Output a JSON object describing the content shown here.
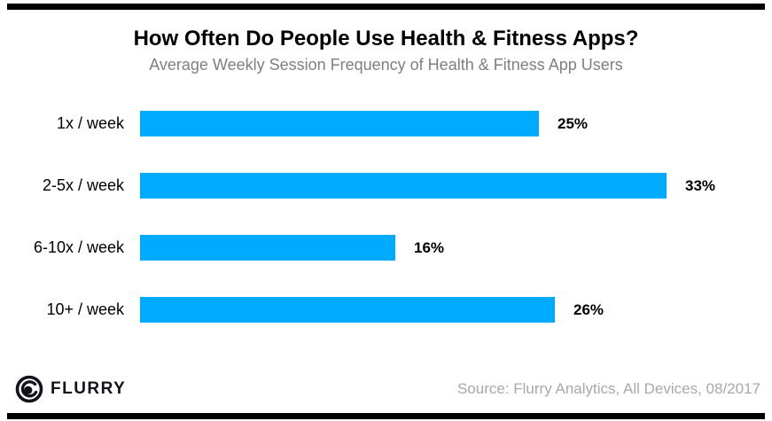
{
  "header": {
    "title": "How Often Do People Use Health & Fitness Apps?",
    "subtitle": "Average Weekly Session Frequency of Health & Fitness App Users"
  },
  "chart_data": {
    "type": "bar",
    "orientation": "horizontal",
    "title": "How Often Do People Use Health & Fitness Apps?",
    "subtitle": "Average Weekly Session Frequency of Health & Fitness App Users",
    "categories": [
      "1x / week",
      "2-5x / week",
      "6-10x / week",
      "10+ / week"
    ],
    "values": [
      25,
      33,
      16,
      26
    ],
    "value_suffix": "%",
    "xlim": [
      0,
      35
    ],
    "grid": false,
    "legend": false,
    "bar_color": "#00AAFF",
    "value_label_position": "right-of-bar"
  },
  "footer": {
    "brand": "FLURRY",
    "brand_icon": "flurry-swirl-icon",
    "source": "Source: Flurry Analytics, All Devices, 08/2017"
  },
  "colors": {
    "bar": "#00AAFF",
    "rule": "#000000",
    "subtitle_text": "#7f7f7f",
    "source_text": "#a8a8a8"
  }
}
